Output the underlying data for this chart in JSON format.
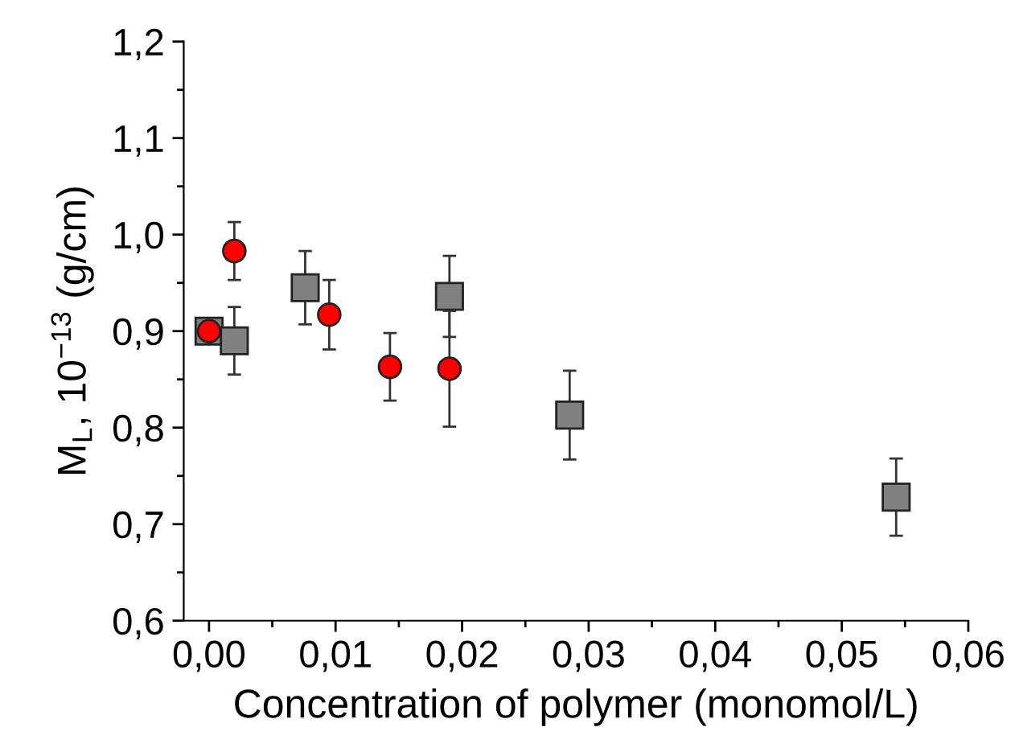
{
  "chart_data": {
    "type": "scatter",
    "xlabel": "Concentration of polymer (monomol/L)",
    "ylabel": "M$_{L}$, 10$^{−13}$ (g/cm)",
    "xlim": [
      -0.002,
      0.06
    ],
    "ylim": [
      0.6,
      1.2
    ],
    "xticks": [
      {
        "value": 0,
        "label": "0,00"
      },
      {
        "value": 0.005,
        "label": null
      },
      {
        "value": 0.01,
        "label": "0,01"
      },
      {
        "value": 0.015,
        "label": null
      },
      {
        "value": 0.02,
        "label": "0,02"
      },
      {
        "value": 0.025,
        "label": null
      },
      {
        "value": 0.03,
        "label": "0,03"
      },
      {
        "value": 0.035,
        "label": null
      },
      {
        "value": 0.04,
        "label": "0,04"
      },
      {
        "value": 0.045,
        "label": null
      },
      {
        "value": 0.05,
        "label": "0,05"
      },
      {
        "value": 0.055,
        "label": null
      },
      {
        "value": 0.06,
        "label": "0,06"
      }
    ],
    "yticks": [
      {
        "value": 0.6,
        "label": "0,6"
      },
      {
        "value": 0.65,
        "label": null
      },
      {
        "value": 0.7,
        "label": "0,7"
      },
      {
        "value": 0.75,
        "label": null
      },
      {
        "value": 0.8,
        "label": "0,8"
      },
      {
        "value": 0.85,
        "label": null
      },
      {
        "value": 0.9,
        "label": "0,9"
      },
      {
        "value": 0.95,
        "label": null
      },
      {
        "value": 1.0,
        "label": "1,0"
      },
      {
        "value": 1.05,
        "label": null
      },
      {
        "value": 1.1,
        "label": "1,1"
      },
      {
        "value": 1.15,
        "label": null
      },
      {
        "value": 1.2,
        "label": "1,2"
      }
    ],
    "grid": false,
    "legend": false,
    "series": [
      {
        "color": "#808080",
        "marker": "square",
        "x": [
          0.0,
          0.002,
          0.0076,
          0.019,
          0.0285,
          0.0543
        ],
        "values": [
          0.9,
          0.89,
          0.945,
          0.936,
          0.813,
          0.728
        ],
        "errors": [
          null,
          0.035,
          0.038,
          0.042,
          0.046,
          0.04
        ]
      },
      {
        "color": "#ff0000",
        "marker": "circle",
        "x": [
          0.0,
          0.002,
          0.0095,
          0.0143,
          0.019
        ],
        "values": [
          0.9,
          0.983,
          0.917,
          0.863,
          0.861
        ],
        "errors": [
          0.01,
          0.03,
          0.036,
          0.035,
          0.06
        ]
      }
    ]
  }
}
